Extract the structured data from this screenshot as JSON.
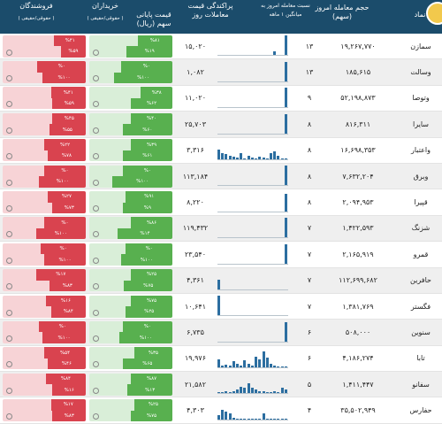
{
  "header": {
    "symbol": "نماد",
    "volume": "حجم معامله امروز (سهم)",
    "ratio": "نسبت معامله امروز به میانگین ۱ ماهه",
    "spread": "پراکندگی قیمت معاملات روز",
    "close": "قیمت پایانی سهم (ریال)",
    "buyers": "خریداران",
    "buyers_sub": "( حقوقی/حقیقی )",
    "sellers": "فروشندگان",
    "sellers_sub": "( حقوقی/حقیقی )"
  },
  "rows": [
    {
      "symbol": "سمازن",
      "volume": "۱۹,۲۶۷,۷۷۰",
      "ratio": "۱۳",
      "close": "۱۵,۰۲۰",
      "spark": [
        0,
        0,
        0,
        0,
        0,
        0,
        0,
        0,
        0,
        0,
        0,
        0,
        0,
        0,
        0,
        0.2,
        0,
        0,
        1
      ],
      "buy": {
        "top": 0.42,
        "bot": 0.55
      },
      "sell": {
        "top": 0.38,
        "bot": 0.3
      },
      "buy_top_text": "%۸۱",
      "buy_bot_text": "%۱۹",
      "sell_top_text": "%۴۱",
      "sell_bot_text": "%۵۹"
    },
    {
      "symbol": "وسالت",
      "volume": "۱۸۵,۶۱۵",
      "ratio": "۱۳",
      "close": "۱,۰۸۲",
      "spark": [
        0,
        0,
        0,
        0,
        0,
        0,
        0,
        0,
        0,
        0,
        0,
        0,
        0,
        0,
        0,
        0,
        0,
        0,
        1
      ],
      "buy": {
        "top": 0.62,
        "bot": 0.7
      },
      "sell": {
        "top": 0.58,
        "bot": 0.52
      },
      "buy_top_text": "%۰",
      "buy_bot_text": "%۱۰۰",
      "sell_top_text": "%۰",
      "sell_bot_text": "%۱۰۰"
    },
    {
      "symbol": "وتوصا",
      "volume": "۵۲,۱۹۸,۸۷۳",
      "ratio": "۹",
      "close": "۱۱,۰۲۰",
      "spark": [
        0,
        0,
        0,
        0,
        0,
        0,
        0,
        0,
        0,
        0,
        0,
        0,
        0,
        0,
        0,
        0,
        0,
        0,
        1
      ],
      "buy": {
        "top": 0.38,
        "bot": 0.5
      },
      "sell": {
        "top": 0.42,
        "bot": 0.4
      },
      "buy_top_text": "%۳۸",
      "buy_bot_text": "%۶۲",
      "sell_top_text": "%۴۱",
      "sell_bot_text": "%۵۹"
    },
    {
      "symbol": "سایرا",
      "volume": "۸۱۶,۳۱۱",
      "ratio": "۸",
      "close": "۲۵,۷۰۳",
      "spark": [
        0,
        0,
        0,
        0,
        0,
        0,
        0,
        0,
        0,
        0,
        0,
        0,
        0,
        0,
        0,
        0,
        0,
        0,
        1
      ],
      "buy": {
        "top": 0.5,
        "bot": 0.6
      },
      "sell": {
        "top": 0.4,
        "bot": 0.44
      },
      "buy_top_text": "%۴۰",
      "buy_bot_text": "%۶۰",
      "sell_top_text": "%۴۵",
      "sell_bot_text": "%۵۵"
    },
    {
      "symbol": "واعتبار",
      "volume": "۱۶,۶۹۸,۳۵۳",
      "ratio": "۸",
      "close": "۳,۳۱۶",
      "spark": [
        0.5,
        0.3,
        0.25,
        0.2,
        0.15,
        0.1,
        0.3,
        0.05,
        0.2,
        0.1,
        0.05,
        0.15,
        0.1,
        0.05,
        0.3,
        0.4,
        0.2,
        0.05,
        0.05
      ],
      "buy": {
        "top": 0.5,
        "bot": 0.6
      },
      "sell": {
        "top": 0.5,
        "bot": 0.46
      },
      "buy_top_text": "%۳۹",
      "buy_bot_text": "%۶۱",
      "sell_top_text": "%۲۲",
      "sell_bot_text": "%۷۸"
    },
    {
      "symbol": "وبرق",
      "volume": "۷,۶۳۲,۲۰۴",
      "ratio": "۸",
      "close": "۱۱۳,۱۸۴",
      "spark": [
        0,
        0,
        0,
        0,
        0,
        0,
        0,
        0,
        0,
        0,
        0,
        0,
        0,
        0,
        0,
        0,
        0,
        0,
        1
      ],
      "buy": {
        "top": 0.6,
        "bot": 0.72
      },
      "sell": {
        "top": 0.5,
        "bot": 0.56
      },
      "buy_top_text": "%۰",
      "buy_bot_text": "%۱۰۰",
      "sell_top_text": "%۰",
      "sell_bot_text": "%۱۰۰"
    },
    {
      "symbol": "قپیرا",
      "volume": "۲,۰۹۴,۹۵۳",
      "ratio": "۸",
      "close": "۸,۲۲۰",
      "spark": [
        0,
        0,
        0,
        0,
        0,
        0,
        0,
        0,
        0,
        0,
        0,
        0,
        0,
        0,
        0,
        0,
        0,
        0,
        0.9
      ],
      "buy": {
        "top": 0.56,
        "bot": 0.6
      },
      "sell": {
        "top": 0.46,
        "bot": 0.4
      },
      "buy_top_text": "%۹۱",
      "buy_bot_text": "%۹",
      "sell_top_text": "%۲۷",
      "sell_bot_text": "%۷۳"
    },
    {
      "symbol": "شزنگ",
      "volume": "۱,۴۲۲,۵۹۳",
      "ratio": "۷",
      "close": "۱۱۹,۴۳۲",
      "spark": [
        0,
        0,
        0,
        0,
        0,
        0,
        0,
        0,
        0,
        0,
        0,
        0,
        0,
        0,
        0,
        0,
        0,
        0,
        1
      ],
      "buy": {
        "top": 0.5,
        "bot": 0.66
      },
      "sell": {
        "top": 0.5,
        "bot": 0.6
      },
      "buy_top_text": "%۸۶",
      "buy_bot_text": "%۱۴",
      "sell_top_text": "%۰",
      "sell_bot_text": "%۱۰۰"
    },
    {
      "symbol": "قمرو",
      "volume": "۲,۱۶۵,۹۱۹",
      "ratio": "۷",
      "close": "۲۳,۵۴۰",
      "spark": [
        0,
        0,
        0,
        0,
        0,
        0,
        0,
        0,
        0,
        0,
        0,
        0,
        0,
        0,
        0,
        0,
        0,
        0,
        1
      ],
      "buy": {
        "top": 0.56,
        "bot": 0.62
      },
      "sell": {
        "top": 0.54,
        "bot": 0.5
      },
      "buy_top_text": "%۰",
      "buy_bot_text": "%۱۰۰",
      "sell_top_text": "%۰",
      "sell_bot_text": "%۱۰۰"
    },
    {
      "symbol": "حافرین",
      "volume": "۱۱۲,۶۹۹,۶۸۲",
      "ratio": "۷",
      "close": "۴,۳۶۱",
      "spark": [
        0.5,
        0,
        0,
        0,
        0,
        0,
        0,
        0,
        0,
        0,
        0,
        0,
        0,
        0,
        0,
        0,
        0,
        0,
        0
      ],
      "buy": {
        "top": 0.5,
        "bot": 0.58
      },
      "sell": {
        "top": 0.6,
        "bot": 0.44
      },
      "buy_top_text": "%۲۵",
      "buy_bot_text": "%۷۵",
      "sell_top_text": "%۱۷",
      "sell_bot_text": "%۸۳"
    },
    {
      "symbol": "فگستر",
      "volume": "۱,۳۸۱,۷۶۹",
      "ratio": "۷",
      "close": "۱۰,۶۴۱",
      "spark": [
        1,
        0,
        0,
        0,
        0,
        0,
        0,
        0,
        0,
        0,
        0,
        0,
        0,
        0,
        0,
        0,
        0,
        0,
        0
      ],
      "buy": {
        "top": 0.5,
        "bot": 0.56
      },
      "sell": {
        "top": 0.48,
        "bot": 0.42
      },
      "buy_top_text": "%۷۵",
      "buy_bot_text": "%۲۵",
      "sell_top_text": "%۱۶",
      "sell_bot_text": "%۸۴"
    },
    {
      "symbol": "سنوین",
      "volume": "۵۰۸,۰۰۰",
      "ratio": "۶",
      "close": "۶,۷۳۵",
      "spark": [
        0,
        0,
        0,
        0,
        0,
        0,
        0,
        0,
        0,
        0,
        0,
        0,
        0,
        0,
        0,
        0,
        0,
        0,
        1
      ],
      "buy": {
        "top": 0.6,
        "bot": 0.64
      },
      "sell": {
        "top": 0.56,
        "bot": 0.52
      },
      "buy_top_text": "%۰",
      "buy_bot_text": "%۱۰۰",
      "sell_top_text": "%۰",
      "sell_bot_text": "%۱۰۰"
    },
    {
      "symbol": "تابا",
      "volume": "۴,۱۸۶,۲۷۴",
      "ratio": "۶",
      "close": "۱۹,۹۷۶",
      "spark": [
        0.4,
        0.1,
        0.15,
        0.1,
        0.3,
        0.2,
        0.1,
        0.35,
        0.2,
        0.1,
        0.55,
        0.4,
        0.8,
        0.5,
        0.2,
        0.1,
        0.05,
        0.05,
        0.05
      ],
      "buy": {
        "top": 0.46,
        "bot": 0.6
      },
      "sell": {
        "top": 0.5,
        "bot": 0.46
      },
      "buy_top_text": "%۳۵",
      "buy_bot_text": "%۶۵",
      "sell_top_text": "%۵۴",
      "sell_bot_text": "%۴۶"
    },
    {
      "symbol": "سفانو",
      "volume": "۱,۴۱۱,۴۴۷",
      "ratio": "۵",
      "close": "۲۱,۵۸۲",
      "spark": [
        0.05,
        0.05,
        0.1,
        0.05,
        0.1,
        0.2,
        0.35,
        0.3,
        0.5,
        0.3,
        0.2,
        0.1,
        0.1,
        0.05,
        0.05,
        0.1,
        0.05,
        0.3,
        0.2
      ],
      "buy": {
        "top": 0.5,
        "bot": 0.54
      },
      "sell": {
        "top": 0.48,
        "bot": 0.4
      },
      "buy_top_text": "%۸۷",
      "buy_bot_text": "%۱۳",
      "sell_top_text": "%۸۴",
      "sell_bot_text": "%۱۶"
    },
    {
      "symbol": "حفارس",
      "volume": "۳۵,۵۰۲,۹۴۹",
      "ratio": "۴",
      "close": "۴,۳۰۳",
      "spark": [
        0.2,
        0.5,
        0.4,
        0.3,
        0.1,
        0.05,
        0.05,
        0.05,
        0.05,
        0.05,
        0.05,
        0.05,
        0.3,
        0.05,
        0.05,
        0.05,
        0.05,
        0.05,
        0.05
      ],
      "buy": {
        "top": 0.46,
        "bot": 0.5
      },
      "sell": {
        "top": 0.42,
        "bot": 0.4
      },
      "buy_top_text": "%۲۵",
      "buy_bot_text": "%۷۵",
      "sell_top_text": "%۱۷",
      "sell_bot_text": "%۸۳"
    }
  ]
}
